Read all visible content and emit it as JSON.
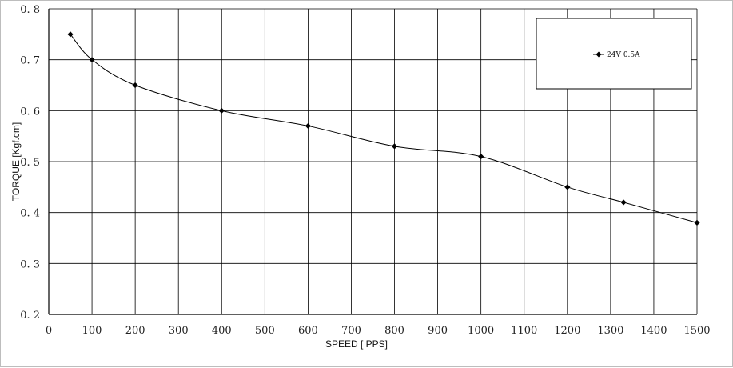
{
  "chart_data": {
    "type": "line",
    "xlabel": "SPEED [ PPS]",
    "ylabel": "TORQUE [Kgf.cm]",
    "xlim": [
      0,
      1500
    ],
    "ylim": [
      0.2,
      0.8
    ],
    "x_ticks": [
      0,
      100,
      200,
      300,
      400,
      500,
      600,
      700,
      800,
      900,
      1000,
      1100,
      1200,
      1300,
      1400,
      1500
    ],
    "y_ticks": [
      0.2,
      0.3,
      0.4,
      0.5,
      0.6,
      0.7,
      0.8
    ],
    "y_tick_labels": [
      "0. 2",
      "0. 3",
      "0. 4",
      "0. 5",
      "0. 6",
      "0. 7",
      "0. 8"
    ],
    "grid": true,
    "legend_position": "top-right",
    "series": [
      {
        "name": "24V 0.5A",
        "color": "#000000",
        "marker": "diamond",
        "x": [
          50,
          100,
          200,
          400,
          600,
          800,
          1000,
          1200,
          1330,
          1500
        ],
        "y": [
          0.75,
          0.7,
          0.65,
          0.6,
          0.57,
          0.53,
          0.51,
          0.45,
          0.42,
          0.38
        ]
      }
    ]
  }
}
